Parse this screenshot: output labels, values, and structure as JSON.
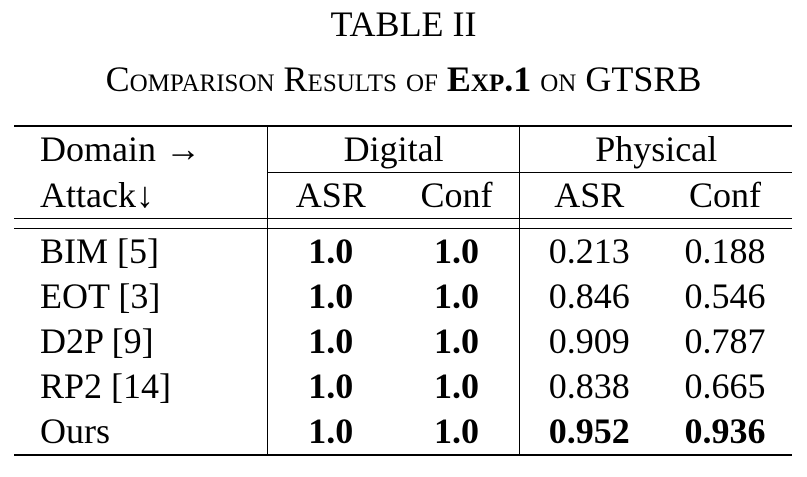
{
  "caption": {
    "number": "TABLE II",
    "title_prefix": "Comparison Results of",
    "title_bold": "Exp.1",
    "title_suffix": "on GTSRB"
  },
  "table": {
    "header_row1": {
      "domain_label": "Domain →",
      "group1": "Digital",
      "group2": "Physical"
    },
    "header_row2": {
      "attack_label": "Attack↓",
      "col1": "ASR",
      "col2": "Conf",
      "col3": "ASR",
      "col4": "Conf"
    },
    "rows": [
      {
        "method": "BIM [5]",
        "digital_asr": "1.0",
        "digital_conf": "1.0",
        "physical_asr": "0.213",
        "physical_conf": "0.188"
      },
      {
        "method": "EOT [3]",
        "digital_asr": "1.0",
        "digital_conf": "1.0",
        "physical_asr": "0.846",
        "physical_conf": "0.546"
      },
      {
        "method": "D2P [9]",
        "digital_asr": "1.0",
        "digital_conf": "1.0",
        "physical_asr": "0.909",
        "physical_conf": "0.787"
      },
      {
        "method": "RP2 [14]",
        "digital_asr": "1.0",
        "digital_conf": "1.0",
        "physical_asr": "0.838",
        "physical_conf": "0.665"
      },
      {
        "method": "Ours",
        "digital_asr": "1.0",
        "digital_conf": "1.0",
        "physical_asr": "0.952",
        "physical_conf": "0.936"
      }
    ]
  }
}
